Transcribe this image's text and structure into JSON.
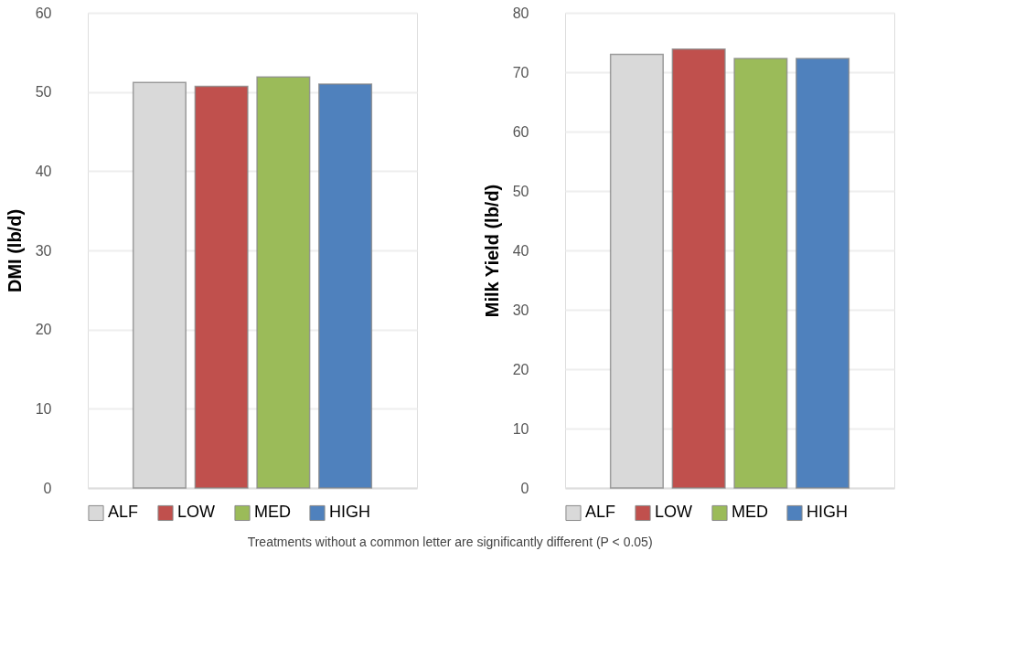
{
  "chart_data": [
    {
      "type": "bar",
      "ylabel": "DMI (lb/d)",
      "categories": [
        null
      ],
      "ylim": [
        0,
        60
      ],
      "yticks": [
        0,
        10,
        20,
        30,
        40,
        50,
        60
      ],
      "grid": "y",
      "legend": "bottom",
      "tick_labels": "y",
      "series": [
        {
          "name": "ALF",
          "color": "#d9d9d9",
          "values": [
            51.2
          ]
        },
        {
          "name": "LOW",
          "color": "#c0504d",
          "values": [
            50.7
          ]
        },
        {
          "name": "MED",
          "color": "#9bbb59",
          "values": [
            51.9
          ]
        },
        {
          "name": "HIGH",
          "color": "#4f81bd",
          "values": [
            51.0
          ]
        }
      ]
    },
    {
      "type": "bar",
      "ylabel": "Milk Yield (lb/d)",
      "categories": [
        null
      ],
      "ylim": [
        0,
        80
      ],
      "yticks": [
        0,
        10,
        20,
        30,
        40,
        50,
        60,
        70,
        80
      ],
      "grid": "y",
      "legend": "bottom",
      "tick_labels": "y",
      "annotations": [
        "Treatments without a common letter are significantly different (P < 0.05)"
      ],
      "series": [
        {
          "name": "ALF",
          "color": "#d9d9d9",
          "values": [
            73.0
          ]
        },
        {
          "name": "LOW",
          "color": "#c0504d",
          "values": [
            73.9
          ]
        },
        {
          "name": "MED",
          "color": "#9bbb59",
          "values": [
            72.3
          ]
        },
        {
          "name": "HIGH",
          "color": "#4f81bd",
          "values": [
            72.3
          ]
        }
      ]
    }
  ]
}
